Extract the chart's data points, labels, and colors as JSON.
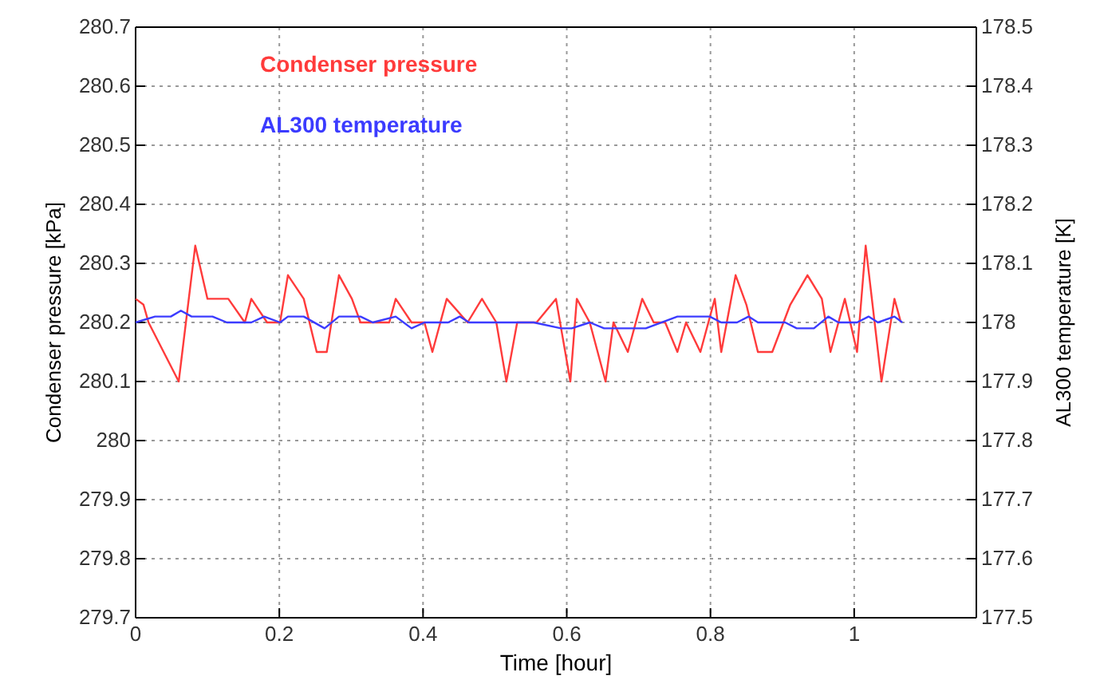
{
  "chart_data": {
    "type": "line",
    "xlabel": "Time [hour]",
    "ylabel": "Condenser pressure [kPa]",
    "y2label": "AL300 temperature [K]",
    "xlim": [
      0,
      1.17
    ],
    "xticks": [
      0,
      0.2,
      0.4,
      0.6,
      0.8,
      1
    ],
    "ylim": [
      279.7,
      280.7
    ],
    "yticks": [
      279.7,
      279.8,
      279.9,
      280,
      280.1,
      280.2,
      280.3,
      280.4,
      280.5,
      280.6,
      280.7
    ],
    "y2lim": [
      177.5,
      178.5
    ],
    "y2ticks": [
      177.5,
      177.6,
      177.7,
      177.8,
      177.9,
      178,
      178.1,
      178.2,
      178.3,
      178.4,
      178.5
    ],
    "grid": true,
    "legend": "top left",
    "line_style": "solid",
    "marker": "none",
    "series": [
      {
        "name": "Condenser pressure",
        "color": "#ff3b3b",
        "x": [
          0,
          0.011,
          0.018,
          0.06,
          0.083,
          0.1,
          0.129,
          0.152,
          0.161,
          0.183,
          0.201,
          0.212,
          0.234,
          0.252,
          0.266,
          0.283,
          0.301,
          0.313,
          0.353,
          0.362,
          0.384,
          0.402,
          0.413,
          0.433,
          0.462,
          0.482,
          0.502,
          0.516,
          0.531,
          0.558,
          0.585,
          0.605,
          0.614,
          0.632,
          0.654,
          0.665,
          0.685,
          0.705,
          0.721,
          0.737,
          0.754,
          0.766,
          0.786,
          0.806,
          0.815,
          0.835,
          0.85,
          0.866,
          0.886,
          0.911,
          0.935,
          0.955,
          0.967,
          0.987,
          1.004,
          1.016,
          1.038,
          1.056,
          1.065
        ],
        "values": [
          280.24,
          280.23,
          280.2,
          280.1,
          280.33,
          280.24,
          280.24,
          280.2,
          280.24,
          280.2,
          280.2,
          280.28,
          280.24,
          280.15,
          280.15,
          280.28,
          280.24,
          280.2,
          280.2,
          280.24,
          280.2,
          280.2,
          280.15,
          280.24,
          280.2,
          280.24,
          280.2,
          280.1,
          280.2,
          280.2,
          280.24,
          280.1,
          280.24,
          280.2,
          280.1,
          280.2,
          280.15,
          280.24,
          280.2,
          280.2,
          280.15,
          280.2,
          280.15,
          280.24,
          280.15,
          280.28,
          280.23,
          280.15,
          280.15,
          280.23,
          280.28,
          280.24,
          280.15,
          280.24,
          280.15,
          280.33,
          280.1,
          280.24,
          280.2
        ]
      },
      {
        "name": "AL300 temperature",
        "color": "#3b3bff",
        "axis": "y2",
        "x": [
          0,
          0.027,
          0.049,
          0.063,
          0.078,
          0.107,
          0.127,
          0.161,
          0.179,
          0.201,
          0.212,
          0.234,
          0.263,
          0.283,
          0.313,
          0.33,
          0.362,
          0.384,
          0.402,
          0.435,
          0.451,
          0.464,
          0.554,
          0.592,
          0.607,
          0.632,
          0.652,
          0.71,
          0.754,
          0.799,
          0.815,
          0.837,
          0.853,
          0.866,
          0.904,
          0.92,
          0.944,
          0.964,
          0.978,
          1.004,
          1.02,
          1.033,
          1.056,
          1.067
        ],
        "values": [
          178,
          178.01,
          178.01,
          178.02,
          178.01,
          178.01,
          178,
          178,
          178.01,
          178,
          178.01,
          178.01,
          177.99,
          178.01,
          178.01,
          178,
          178.01,
          177.99,
          178,
          178,
          178.01,
          178,
          178,
          177.99,
          177.99,
          178,
          177.99,
          177.99,
          178.01,
          178.01,
          178,
          178,
          178.01,
          178,
          178,
          177.99,
          177.99,
          178.01,
          178,
          178,
          178.01,
          178,
          178.01,
          178
        ]
      }
    ]
  }
}
